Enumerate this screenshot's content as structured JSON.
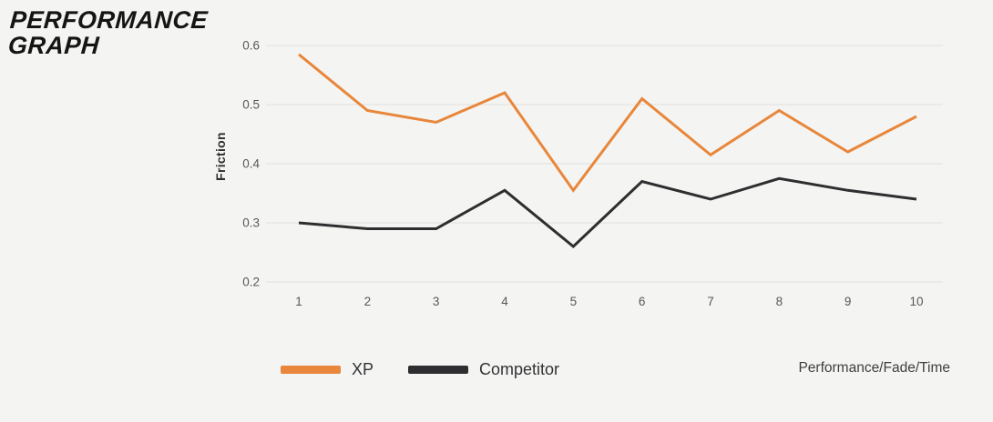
{
  "page": {
    "title_line1": "PERFORMANCE",
    "title_line2": "GRAPH"
  },
  "chart_data": {
    "type": "line",
    "title": "PERFORMANCE GRAPH",
    "x": [
      1,
      2,
      3,
      4,
      5,
      6,
      7,
      8,
      9,
      10
    ],
    "series": [
      {
        "name": "XP",
        "color": "#E8873B",
        "values": [
          0.585,
          0.49,
          0.47,
          0.52,
          0.355,
          0.51,
          0.415,
          0.49,
          0.42,
          0.48
        ]
      },
      {
        "name": "Competitor",
        "color": "#2E2E30",
        "values": [
          0.3,
          0.29,
          0.29,
          0.355,
          0.26,
          0.37,
          0.34,
          0.375,
          0.355,
          0.34
        ]
      }
    ],
    "xlabel": "Performance/Fade/Time",
    "ylabel": "Friction",
    "ylim": [
      0.2,
      0.6
    ],
    "yticks": [
      0.2,
      0.3,
      0.4,
      0.5,
      0.6
    ],
    "grid": true,
    "legend_position": "bottom-left"
  },
  "colors": {
    "background": "#F4F4F2",
    "gridline": "#E4E4E2",
    "tick_text": "#58585A",
    "xp_line": "#E8873B",
    "competitor_line": "#2E2E30"
  }
}
